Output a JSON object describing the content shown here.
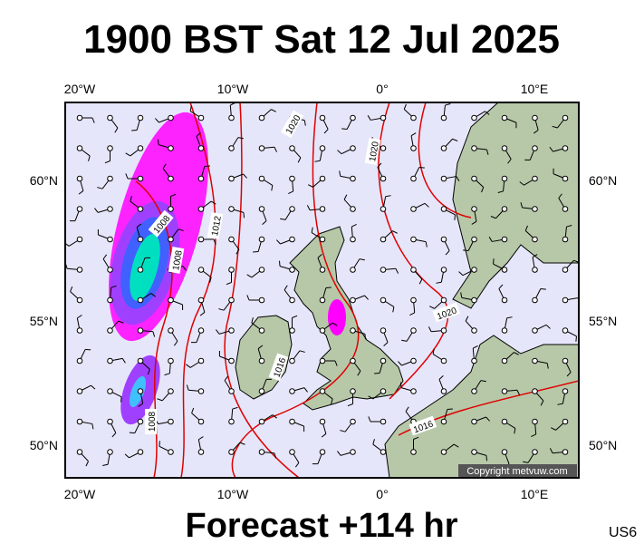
{
  "header": {
    "title": "1900 BST Sat 12 Jul 2025"
  },
  "map": {
    "lon_labels": [
      "20°W",
      "10°W",
      "0°",
      "10°E"
    ],
    "lat_labels": [
      "60°N",
      "55°N",
      "50°N"
    ],
    "isobar_labels": [
      "1008",
      "1008",
      "1012",
      "1016",
      "1020",
      "1020",
      "1016",
      "1008",
      "1020"
    ],
    "copyright": "Copyright metvuw.com"
  },
  "footer": {
    "subtitle": "Forecast +114 hr",
    "code": "US6"
  }
}
